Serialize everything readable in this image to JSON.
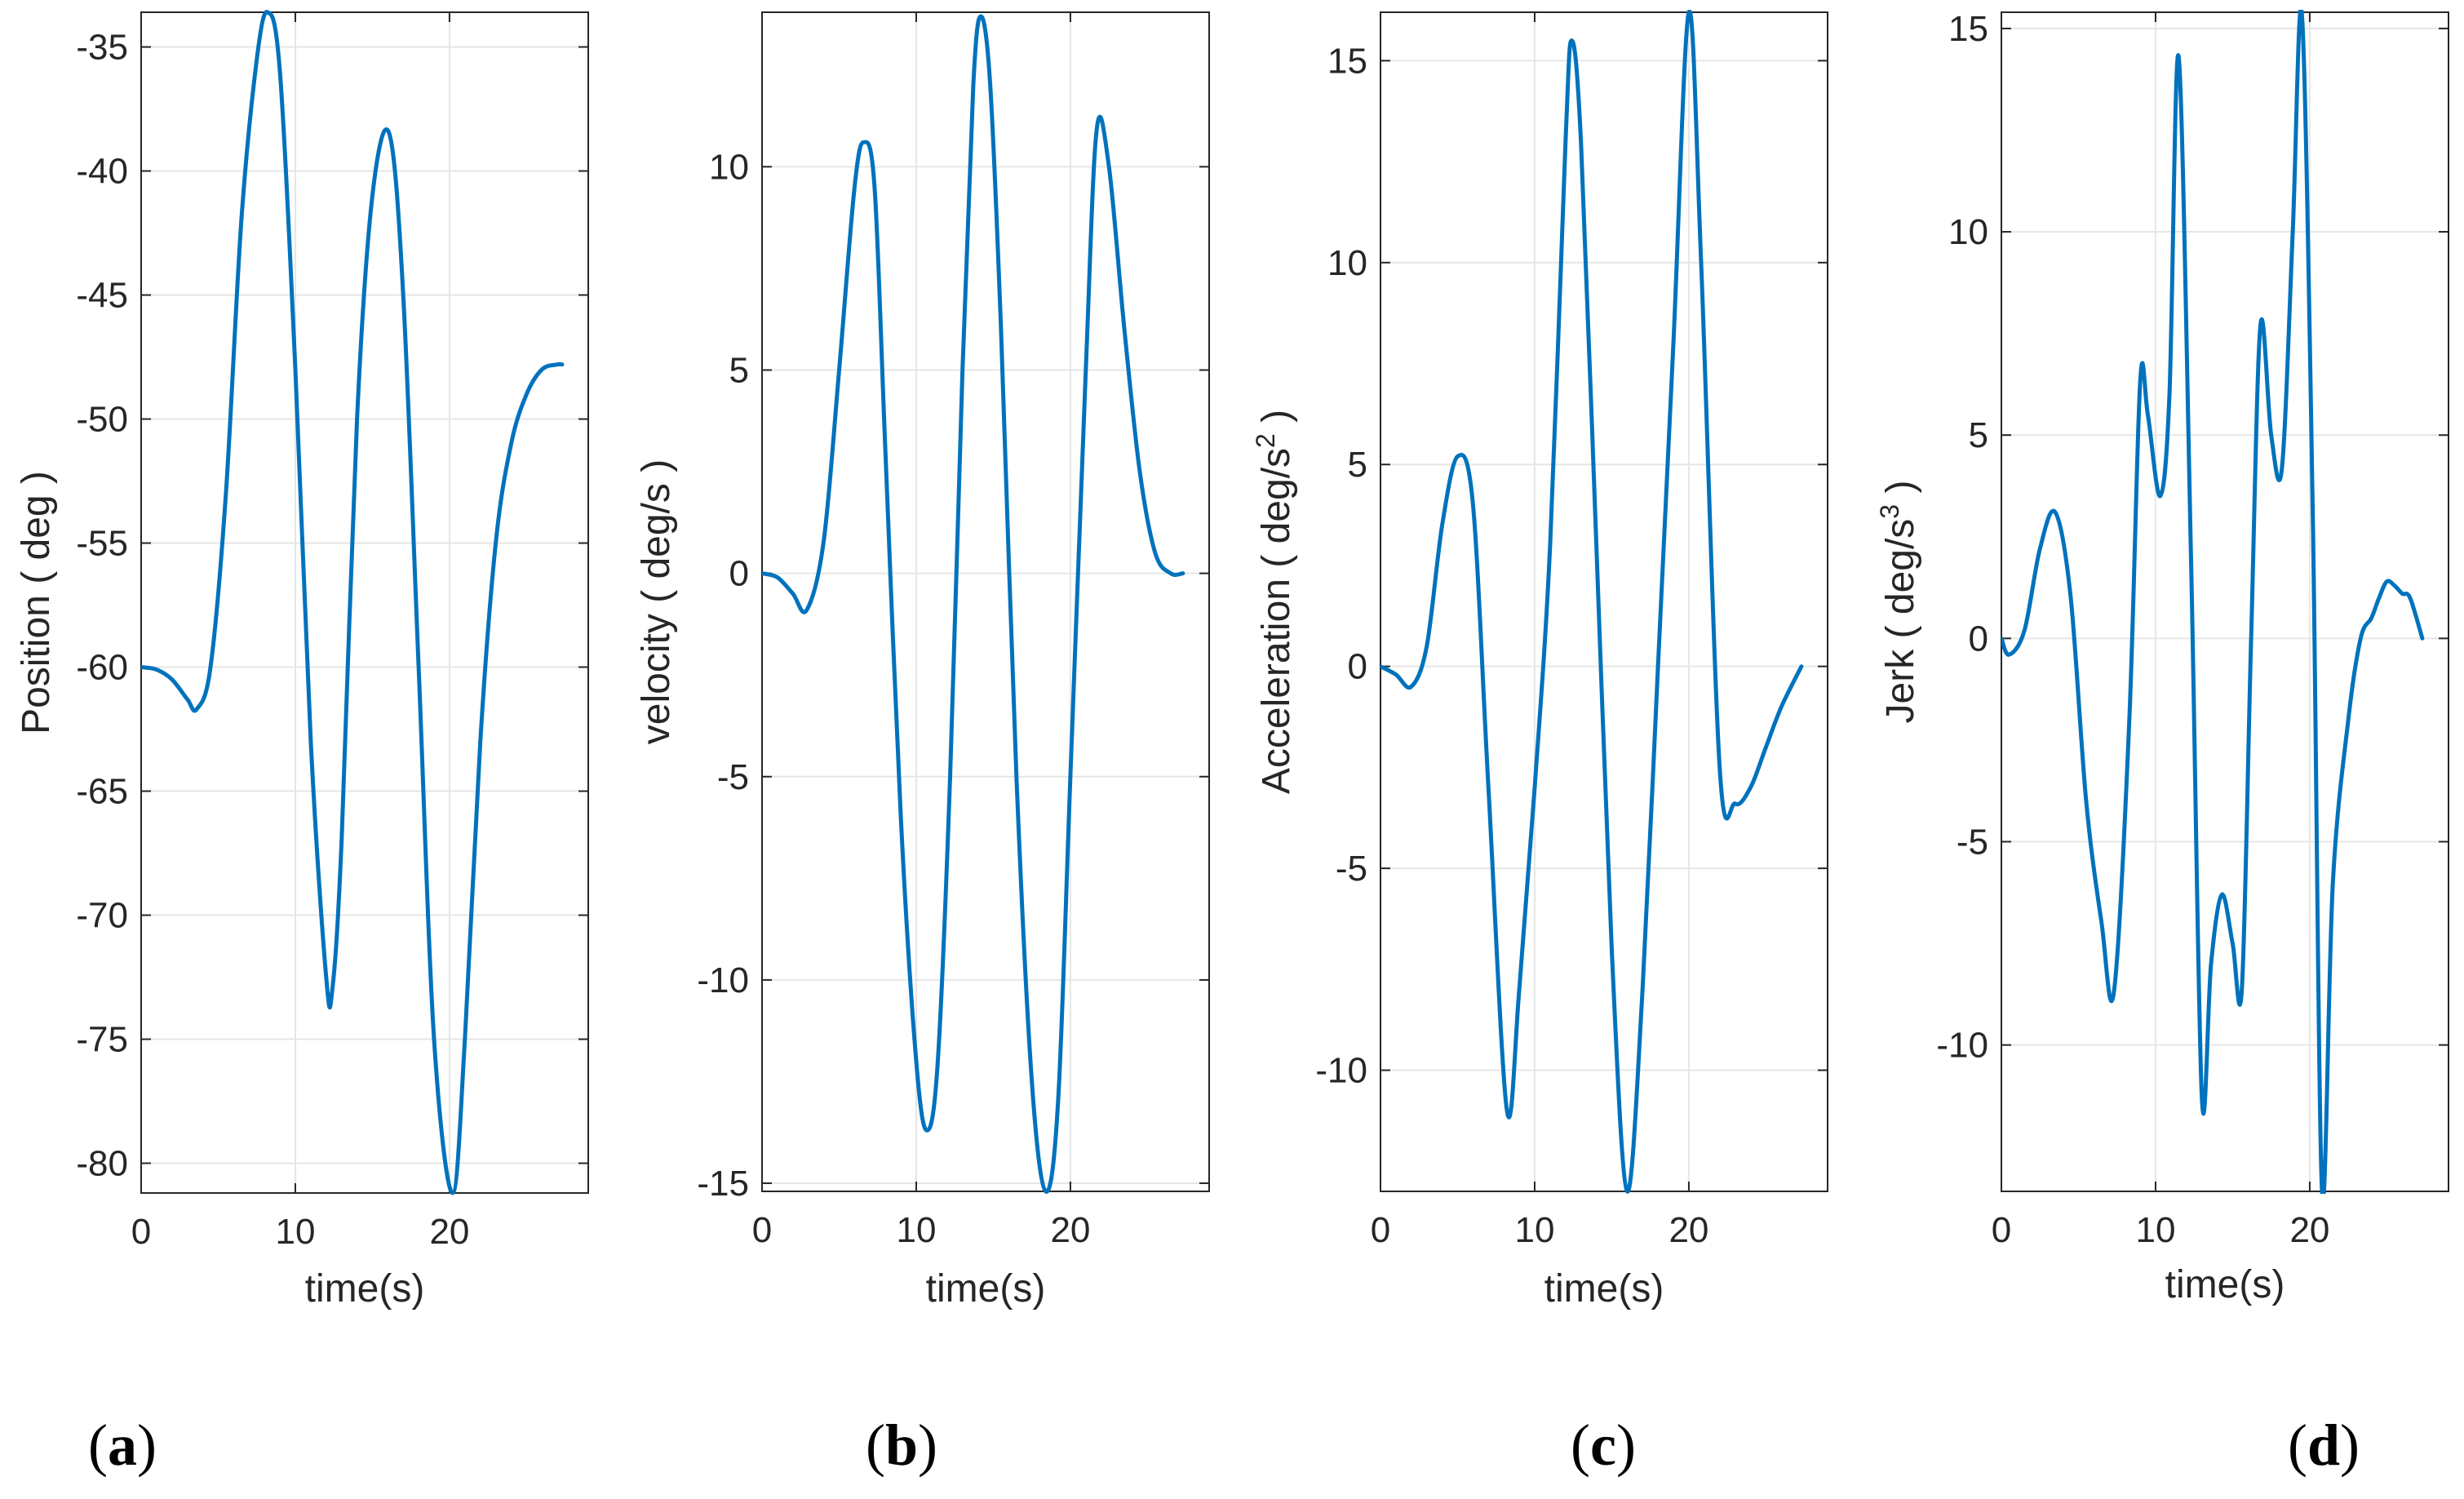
{
  "line_color": "#0072BD",
  "chart_data": [
    {
      "type": "line",
      "panel_label": "a",
      "xlabel": "time(s)",
      "ylabel": "Position ( deg )",
      "ylabel_sup": "",
      "ylabel_tail": "",
      "xlim": [
        0,
        29
      ],
      "ylim": [
        -81.2,
        -33.6
      ],
      "xticks": [
        0,
        10,
        20
      ],
      "yticks": [
        -80,
        -75,
        -70,
        -65,
        -60,
        -55,
        -50,
        -45,
        -40,
        -35
      ],
      "grid": true,
      "x": [
        0,
        1,
        2,
        3,
        3.6,
        4.5,
        5.5,
        6.5,
        7.5,
        8.2,
        9,
        10,
        11,
        12,
        12.4,
        13,
        14,
        15,
        16.1,
        17,
        18,
        19,
        20.2,
        21,
        22,
        23,
        24,
        25,
        26,
        27,
        27.3
      ],
      "values": [
        -60,
        -60.1,
        -60.5,
        -61.3,
        -61.7,
        -60,
        -53,
        -42,
        -35.5,
        -33.6,
        -36,
        -48,
        -63,
        -72.5,
        -73,
        -67,
        -50,
        -41,
        -38.5,
        -45,
        -60,
        -75,
        -81.2,
        -75,
        -63,
        -55,
        -51,
        -49,
        -48,
        -47.8,
        -47.8
      ]
    },
    {
      "type": "line",
      "panel_label": "b",
      "xlabel": "time(s)",
      "ylabel": "velocity ( deg/s )",
      "ylabel_sup": "",
      "ylabel_tail": "",
      "xlim": [
        0,
        29
      ],
      "ylim": [
        -15.2,
        13.8
      ],
      "xticks": [
        0,
        10,
        20
      ],
      "yticks": [
        -15,
        -10,
        -5,
        0,
        5,
        10
      ],
      "grid": true,
      "x": [
        0,
        1,
        2,
        2.9,
        4,
        5,
        6,
        6.6,
        7.3,
        8,
        9,
        10,
        10.7,
        11.4,
        12.2,
        13,
        13.7,
        14.2,
        14.8,
        15.5,
        16.5,
        17.5,
        18.4,
        19.2,
        20,
        21,
        21.7,
        22.5,
        23.5,
        24.5,
        25.5,
        26.5,
        27.3
      ],
      "values": [
        0,
        -0.1,
        -0.5,
        -0.9,
        0.8,
        5,
        9.5,
        10.6,
        9.5,
        3,
        -6,
        -12,
        -13.7,
        -12,
        -5,
        5,
        12,
        13.7,
        12,
        6,
        -5,
        -12.5,
        -15.2,
        -13,
        -5,
        5,
        10.9,
        10,
        6,
        2.5,
        0.5,
        0,
        0
      ]
    },
    {
      "type": "line",
      "panel_label": "c",
      "xlabel": "time(s)",
      "ylabel": "Acceleration ( deg/s",
      "ylabel_sup": "2",
      "ylabel_tail": " )",
      "xlim": [
        0,
        29
      ],
      "ylim": [
        -13,
        16.2
      ],
      "xticks": [
        0,
        10,
        20
      ],
      "yticks": [
        -10,
        -5,
        0,
        5,
        10,
        15
      ],
      "grid": true,
      "x": [
        0,
        1,
        2,
        3,
        4,
        5,
        6,
        7,
        8.2,
        9,
        10,
        11,
        12,
        12.4,
        13,
        14,
        15,
        16,
        17,
        18,
        19,
        20,
        20.8,
        22,
        23,
        24,
        25,
        26,
        27.3
      ],
      "values": [
        0,
        -0.2,
        -0.5,
        0.5,
        3.5,
        5.2,
        4,
        -3,
        -11,
        -8,
        -3,
        3,
        13,
        15.5,
        13,
        3,
        -7,
        -13,
        -8,
        0,
        8,
        16.2,
        10,
        -2.5,
        -3.4,
        -3,
        -2,
        -1,
        0
      ]
    },
    {
      "type": "line",
      "panel_label": "d",
      "xlabel": "time(s)",
      "ylabel": "Jerk ( deg/s",
      "ylabel_sup": "3",
      "ylabel_tail": " )",
      "xlim": [
        0,
        29
      ],
      "ylim": [
        -13.6,
        15.4
      ],
      "xticks": [
        0,
        10,
        20
      ],
      "yticks": [
        -10,
        -5,
        0,
        5,
        10,
        15
      ],
      "grid": true,
      "x": [
        0,
        0.5,
        1.5,
        2.5,
        3.5,
        4.5,
        5.5,
        6.5,
        7.3,
        8.3,
        9,
        9.5,
        10.3,
        10.9,
        11.5,
        12.3,
        13,
        13.6,
        14.3,
        15,
        15.6,
        16.2,
        16.8,
        17.5,
        18.2,
        18.9,
        19.5,
        20.2,
        20.8,
        21.5,
        22.5,
        23.3,
        24,
        24.5,
        25,
        25.5,
        26,
        26.5,
        27.3
      ],
      "values": [
        0,
        -0.4,
        0.2,
        2.2,
        3.1,
        1,
        -4,
        -7,
        -8.7,
        -2,
        6.3,
        5.5,
        3.5,
        6,
        14.3,
        2,
        -11.3,
        -8,
        -6.3,
        -7.5,
        -8.6,
        0,
        7.7,
        5,
        4.2,
        10,
        15.3,
        3,
        -13.6,
        -6,
        -2,
        0,
        0.5,
        1,
        1.4,
        1.3,
        1.1,
        1,
        0
      ]
    }
  ]
}
